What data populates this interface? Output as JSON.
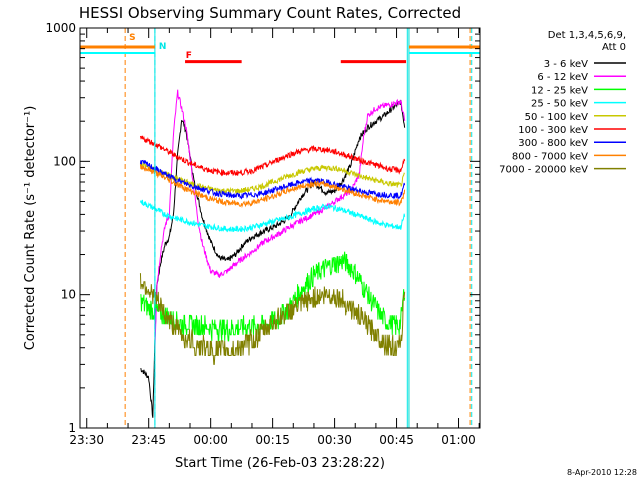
{
  "chart_data": {
    "type": "line",
    "title": "HESSI Observing Summary Count Rates, Corrected",
    "xlabel": "Start Time (26-Feb-03 23:28:22)",
    "ylabel": "Corrected Count Rate (s⁻¹ detector⁻¹)",
    "footer_date": "8-Apr-2010 12:28",
    "y_scale": "log",
    "ylim": [
      1,
      1000
    ],
    "xlim_minutes_after_2330": [
      -1.63,
      95.2
    ],
    "x_tick_labels": [
      "23:30",
      "23:45",
      "00:00",
      "00:15",
      "00:30",
      "00:45",
      "01:00"
    ],
    "x_tick_minutes": [
      0,
      15,
      30,
      45,
      60,
      75,
      90
    ],
    "y_tick_labels": [
      "1",
      "10",
      "100",
      "1000"
    ],
    "y_tick_values": [
      1,
      10,
      100,
      1000
    ],
    "legend": {
      "position": "top-right",
      "header_line1": "Det 1,3,4,5,6,9,",
      "header_line2": "Att 0"
    },
    "flags": [
      {
        "letter": "S",
        "color": "#ff8000",
        "x_minute": 9.3
      },
      {
        "letter": "N",
        "color": "#00e6e6",
        "x_minute": 16.5
      },
      {
        "letter": "F",
        "color": "#ff0000",
        "x_minute": 23.0
      }
    ],
    "flare_intervals_minutes": [
      [
        23.8,
        37.5
      ],
      [
        61.5,
        77.3
      ]
    ],
    "night_boundaries_minutes": [
      16.5,
      78.0
    ],
    "night_bars": {
      "orange_level": 720,
      "cyan_level": 650,
      "segments_minutes": [
        [
          -1.63,
          16.5
        ],
        [
          78.0,
          95.2
        ]
      ]
    },
    "saa_lines_minutes": [
      [
        9.3,
        "#ff8000"
      ],
      [
        16.5,
        "#00e6e6"
      ],
      [
        92.8,
        "#ff8000"
      ],
      [
        93.2,
        "#00e6e6"
      ],
      [
        77.6,
        "#00e6e6"
      ],
      [
        78.0,
        "#ff8000"
      ]
    ],
    "series": [
      {
        "name": "3 - 6 keV",
        "color": "#000000",
        "x": [
          13,
          14,
          15,
          16,
          16.5,
          17,
          18,
          19,
          20,
          21,
          22,
          23,
          24,
          26,
          28,
          30,
          32,
          34,
          36,
          38,
          40,
          43,
          46,
          49,
          52,
          55,
          58,
          60,
          62,
          64,
          66,
          68,
          70,
          72,
          74,
          76,
          77
        ],
        "values": [
          2.8,
          2.6,
          2.4,
          1.2,
          4.5,
          12,
          18,
          24,
          27,
          40,
          110,
          210,
          170,
          70,
          38,
          25,
          19,
          18,
          20,
          24,
          27,
          30,
          33,
          38,
          55,
          70,
          58,
          60,
          72,
          95,
          150,
          180,
          200,
          220,
          250,
          280,
          180
        ]
      },
      {
        "name": "6 - 12 keV",
        "color": "#ff00ff",
        "x": [
          16.5,
          17,
          18,
          19,
          20,
          21,
          22,
          23,
          24,
          25,
          26,
          27,
          28,
          30,
          32,
          34,
          36,
          38,
          40,
          43,
          46,
          49,
          52,
          55,
          58,
          60,
          62,
          64,
          66,
          67,
          68,
          70,
          72,
          74,
          76,
          77
        ],
        "values": [
          4,
          12,
          22,
          33,
          40,
          160,
          330,
          250,
          180,
          110,
          60,
          35,
          24,
          15,
          14,
          15,
          17,
          19,
          21,
          25,
          28,
          32,
          36,
          40,
          45,
          50,
          55,
          60,
          80,
          150,
          220,
          250,
          260,
          270,
          280,
          200
        ]
      },
      {
        "name": "12 - 25 keV",
        "color": "#00ff00",
        "x": [
          13,
          15,
          17,
          19,
          21,
          23,
          25,
          28,
          31,
          34,
          37,
          40,
          43,
          46,
          49,
          52,
          55,
          58,
          60,
          62,
          64,
          66,
          68,
          70,
          72,
          74,
          76,
          77
        ],
        "values": [
          9,
          8,
          7.5,
          7,
          6.5,
          6,
          6,
          5.8,
          5.6,
          5.5,
          5.6,
          5.8,
          6,
          6.5,
          8,
          11,
          14,
          16,
          17,
          18,
          16,
          13,
          10,
          8,
          6.5,
          6,
          6,
          12
        ]
      },
      {
        "name": "25 - 50 keV",
        "color": "#00ffff",
        "x": [
          13,
          16,
          19,
          22,
          25,
          28,
          31,
          34,
          37,
          40,
          43,
          46,
          49,
          52,
          55,
          58,
          61,
          64,
          67,
          70,
          73,
          76,
          77
        ],
        "values": [
          50,
          45,
          40,
          37,
          35,
          33,
          32,
          31,
          31,
          32,
          34,
          36,
          38,
          41,
          44,
          46,
          44,
          41,
          38,
          35,
          33,
          32,
          40
        ]
      },
      {
        "name": "50 - 100 keV",
        "color": "#c8c800",
        "x": [
          13,
          16,
          19,
          22,
          25,
          28,
          31,
          34,
          37,
          40,
          43,
          46,
          49,
          52,
          55,
          58,
          61,
          64,
          67,
          70,
          73,
          76,
          77
        ],
        "values": [
          95,
          88,
          80,
          74,
          68,
          64,
          61,
          60,
          60,
          62,
          66,
          72,
          78,
          84,
          88,
          90,
          88,
          82,
          76,
          72,
          68,
          66,
          80
        ]
      },
      {
        "name": "100 - 300 keV",
        "color": "#ff0000",
        "x": [
          13,
          16,
          19,
          22,
          25,
          28,
          31,
          34,
          37,
          40,
          43,
          46,
          49,
          52,
          55,
          58,
          61,
          64,
          67,
          70,
          73,
          76,
          77
        ],
        "values": [
          150,
          138,
          122,
          108,
          97,
          89,
          84,
          82,
          82,
          85,
          92,
          102,
          112,
          120,
          124,
          122,
          116,
          108,
          100,
          94,
          88,
          85,
          105
        ]
      },
      {
        "name": "300 - 800 keV",
        "color": "#0000ff",
        "x": [
          13,
          16,
          19,
          22,
          25,
          28,
          31,
          34,
          37,
          40,
          43,
          46,
          49,
          52,
          55,
          58,
          61,
          64,
          67,
          70,
          73,
          76,
          77
        ],
        "values": [
          100,
          90,
          80,
          72,
          66,
          62,
          58,
          56,
          55,
          56,
          58,
          62,
          66,
          70,
          72,
          70,
          66,
          62,
          59,
          57,
          56,
          55,
          68
        ]
      },
      {
        "name": "800 - 7000 keV",
        "color": "#ff8000",
        "x": [
          13,
          16,
          19,
          22,
          25,
          28,
          31,
          34,
          37,
          40,
          43,
          46,
          49,
          52,
          55,
          58,
          61,
          64,
          67,
          70,
          73,
          76,
          77
        ],
        "values": [
          92,
          84,
          75,
          67,
          60,
          55,
          51,
          49,
          48,
          49,
          52,
          56,
          61,
          65,
          68,
          67,
          63,
          59,
          55,
          52,
          50,
          49,
          60
        ]
      },
      {
        "name": "7000 - 20000 keV",
        "color": "#808000",
        "x": [
          13,
          15,
          17,
          19,
          21,
          23,
          25,
          28,
          31,
          34,
          37,
          40,
          43,
          46,
          49,
          52,
          55,
          58,
          61,
          64,
          67,
          70,
          73,
          76,
          77
        ],
        "values": [
          13,
          11,
          9,
          7,
          6,
          5,
          4.5,
          4,
          3.8,
          3.8,
          4,
          4.5,
          5.5,
          6.5,
          7.5,
          8.5,
          9.5,
          10,
          9.5,
          8,
          6.5,
          5,
          4.2,
          4,
          12
        ]
      }
    ]
  }
}
